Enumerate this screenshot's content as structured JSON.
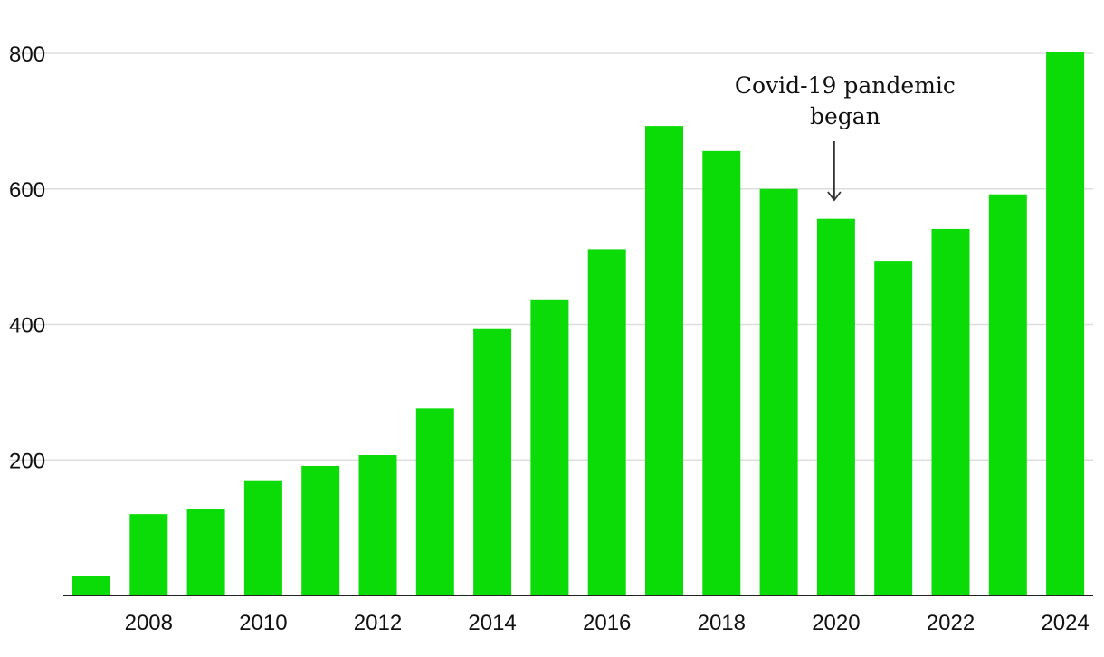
{
  "chart_data": {
    "type": "bar",
    "title": "",
    "xlabel": "",
    "ylabel": "",
    "categories": [
      "2007",
      "2008",
      "2009",
      "2010",
      "2011",
      "2012",
      "2013",
      "2014",
      "2015",
      "2016",
      "2017",
      "2018",
      "2019",
      "2020",
      "2021",
      "2022",
      "2023",
      "2024"
    ],
    "values": [
      29,
      120,
      127,
      170,
      191,
      207,
      276,
      393,
      437,
      511,
      693,
      656,
      600,
      556,
      494,
      541,
      592,
      802
    ],
    "x_tick_labels": [
      "2008",
      "2010",
      "2012",
      "2014",
      "2016",
      "2018",
      "2020",
      "2022",
      "2024"
    ],
    "y_ticks": [
      200,
      400,
      600,
      800
    ],
    "y_tick_labels": [
      "200",
      "400",
      "600",
      "800"
    ],
    "ylim": [
      0,
      800
    ],
    "grid": true,
    "bar_color": "#0bdb06",
    "annotation": {
      "lines": [
        "Covid-19 pandemic",
        "began"
      ],
      "target_category": "2020"
    }
  }
}
